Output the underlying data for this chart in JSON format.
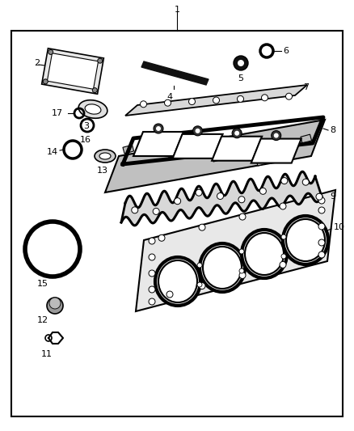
{
  "bg_color": "#ffffff",
  "border_color": "#000000",
  "line_color": "#000000",
  "fig_width": 4.38,
  "fig_height": 5.33,
  "dpi": 100
}
